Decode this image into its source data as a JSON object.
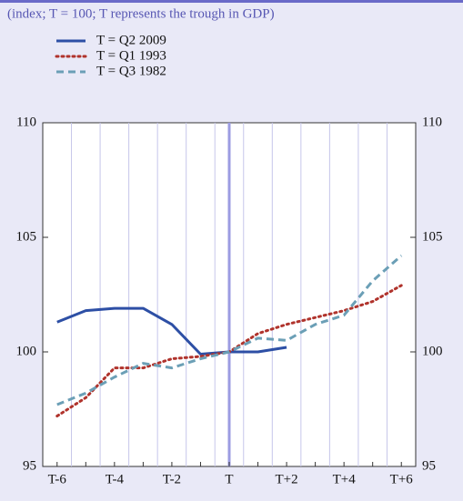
{
  "chart_data": {
    "type": "line",
    "subtitle": "(index; T = 100; T represents the trough in GDP)",
    "categories": [
      "T-6",
      null,
      "T-4",
      null,
      "T-2",
      null,
      "T",
      null,
      "T+2",
      null,
      "T+4",
      null,
      "T+6"
    ],
    "series": [
      {
        "name": "T = Q2 2009",
        "color": "#2d4fa5",
        "style": "solid",
        "values": [
          101.3,
          101.8,
          101.9,
          101.9,
          101.2,
          99.9,
          100.0,
          100.0,
          100.2,
          null,
          null,
          null,
          null
        ]
      },
      {
        "name": "T = Q1 1993",
        "color": "#b0332c",
        "style": "dotted",
        "values": [
          97.2,
          98.0,
          99.3,
          99.3,
          99.7,
          99.8,
          100.0,
          100.8,
          101.2,
          101.5,
          101.8,
          102.2,
          102.9
        ]
      },
      {
        "name": "T = Q3 1982",
        "color": "#6b9fb6",
        "style": "dashed",
        "values": [
          97.7,
          98.2,
          98.9,
          99.5,
          99.3,
          99.7,
          100.0,
          100.6,
          100.5,
          101.2,
          101.6,
          103.1,
          104.2
        ]
      }
    ],
    "ylim": [
      95,
      110
    ],
    "yticks": [
      95,
      100,
      105,
      110
    ]
  }
}
